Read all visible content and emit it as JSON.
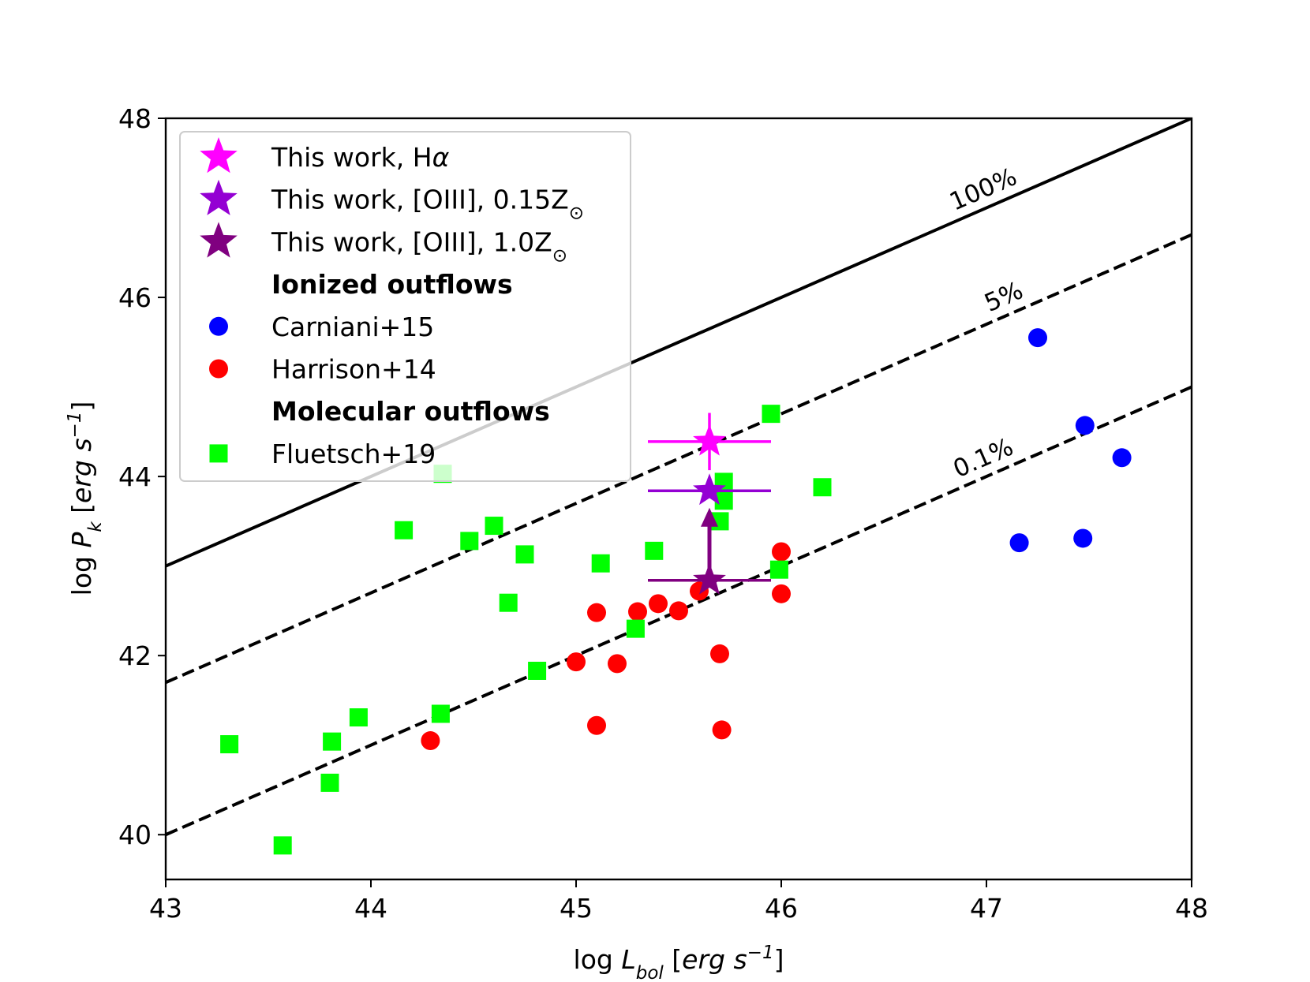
{
  "chart_data": {
    "type": "scatter",
    "title": "",
    "xlabel": {
      "prefix": "log ",
      "var": "L",
      "sub": "bol",
      "unit_pre": " [",
      "unit_it": "erg s",
      "sup": "−1",
      "unit_post": "]"
    },
    "ylabel": {
      "prefix": "log ",
      "var": "P",
      "sub": "k",
      "unit_pre": " [",
      "unit_it": "erg s",
      "sup": "−1",
      "unit_post": "]"
    },
    "xlim": [
      43,
      48
    ],
    "ylim": [
      39.5,
      48
    ],
    "xticks": [
      43,
      44,
      45,
      46,
      47,
      48
    ],
    "yticks": [
      40,
      42,
      44,
      46,
      48
    ],
    "reference_lines": [
      {
        "label": "100%",
        "offset": 0,
        "style": "solid"
      },
      {
        "label": "5%",
        "offset": -1.3,
        "style": "dashed"
      },
      {
        "label": "0.1%",
        "offset": -3.0,
        "style": "dashed"
      }
    ],
    "legend": {
      "position": "upper-left",
      "entries": [
        {
          "kind": "marker",
          "marker": "star",
          "color": "#ff00ff",
          "text": "This work, H",
          "italic": "α"
        },
        {
          "kind": "marker",
          "marker": "star",
          "color": "#9400d3",
          "text": "This work, [OIII], 0.15Z",
          "sub": "⊙"
        },
        {
          "kind": "marker",
          "marker": "star",
          "color": "#800080",
          "text": "This work, [OIII], 1.0Z",
          "sub": "⊙"
        },
        {
          "kind": "header",
          "text": "Ionized outflows"
        },
        {
          "kind": "marker",
          "marker": "circle",
          "color": "#0000ff",
          "text": "Carniani+15"
        },
        {
          "kind": "marker",
          "marker": "circle",
          "color": "#ff0000",
          "text": "Harrison+14"
        },
        {
          "kind": "header",
          "text": "Molecular outflows"
        },
        {
          "kind": "marker",
          "marker": "square",
          "color": "#00ff00",
          "text": "Fluetsch+19"
        }
      ]
    },
    "series": [
      {
        "name": "Carniani+15",
        "marker": "circle",
        "color": "#0000ff",
        "points": [
          [
            47.25,
            45.55
          ],
          [
            47.48,
            44.57
          ],
          [
            47.66,
            44.21
          ],
          [
            47.16,
            43.26
          ],
          [
            47.47,
            43.31
          ]
        ]
      },
      {
        "name": "Harrison+14",
        "marker": "circle",
        "color": "#ff0000",
        "points": [
          [
            44.29,
            41.05
          ],
          [
            45.0,
            41.93
          ],
          [
            45.1,
            42.48
          ],
          [
            45.1,
            41.22
          ],
          [
            45.2,
            41.91
          ],
          [
            45.3,
            42.49
          ],
          [
            45.4,
            42.58
          ],
          [
            45.5,
            42.5
          ],
          [
            45.6,
            42.72
          ],
          [
            45.7,
            42.02
          ],
          [
            45.71,
            41.17
          ],
          [
            46.0,
            43.16
          ],
          [
            46.0,
            42.69
          ]
        ]
      },
      {
        "name": "Fluetsch+19",
        "marker": "square",
        "color": "#00ff00",
        "points": [
          [
            43.31,
            41.01
          ],
          [
            43.57,
            39.88
          ],
          [
            43.8,
            40.58
          ],
          [
            43.81,
            41.04
          ],
          [
            43.94,
            41.31
          ],
          [
            44.16,
            43.4
          ],
          [
            44.34,
            41.35
          ],
          [
            44.35,
            44.03
          ],
          [
            44.48,
            43.28
          ],
          [
            44.6,
            43.45
          ],
          [
            44.67,
            42.59
          ],
          [
            44.75,
            43.13
          ],
          [
            44.81,
            41.83
          ],
          [
            45.12,
            43.03
          ],
          [
            45.29,
            42.3
          ],
          [
            45.38,
            43.17
          ],
          [
            45.7,
            43.5
          ],
          [
            45.72,
            43.73
          ],
          [
            45.72,
            43.94
          ],
          [
            45.95,
            44.7
          ],
          [
            45.99,
            42.96
          ],
          [
            46.2,
            43.88
          ]
        ]
      },
      {
        "name": "This work, Hα",
        "marker": "star",
        "color": "#ff00ff",
        "points": [
          [
            45.65,
            44.39
          ]
        ],
        "xerr": [
          0.3,
          0.3
        ],
        "yerr": [
          0.32,
          0.32
        ]
      },
      {
        "name": "This work, [OIII], 0.15Z⊙",
        "marker": "star",
        "color": "#9400d3",
        "points": [
          [
            45.65,
            43.84
          ]
        ],
        "xerr": [
          0.3,
          0.3
        ]
      },
      {
        "name": "This work, [OIII], 1.0Z⊙",
        "marker": "star",
        "color": "#800080",
        "points": [
          [
            45.65,
            42.84
          ]
        ],
        "xerr": [
          0.3,
          0.3
        ],
        "lower_limit_arrow_to": 43.58
      }
    ]
  }
}
